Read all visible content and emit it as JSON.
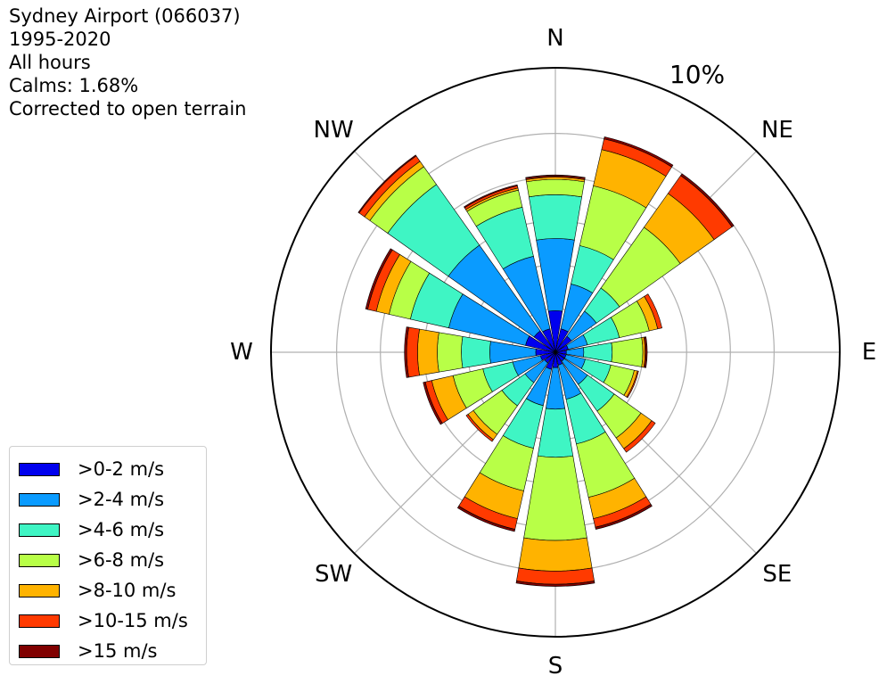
{
  "header": {
    "station": "Sydney Airport (066037)",
    "period": "1995-2020",
    "hours": "All hours",
    "calms": "Calms: 1.68%",
    "note": "Corrected to open terrain"
  },
  "chart_data": {
    "type": "windrose",
    "ring_label": "10%",
    "rmax_pct": 13,
    "rings_pct": [
      2,
      4,
      6,
      8,
      10
    ],
    "directions": [
      "N",
      "NNE",
      "NE",
      "ENE",
      "E",
      "ESE",
      "SE",
      "SSE",
      "S",
      "SSW",
      "SW",
      "WSW",
      "W",
      "WNW",
      "NW",
      "NNW"
    ],
    "cardinal_labels": [
      {
        "text": "N",
        "angle": 0
      },
      {
        "text": "NE",
        "angle": 45
      },
      {
        "text": "E",
        "angle": 90
      },
      {
        "text": "SE",
        "angle": 135
      },
      {
        "text": "S",
        "angle": 180
      },
      {
        "text": "SW",
        "angle": 225
      },
      {
        "text": "W",
        "angle": 270
      },
      {
        "text": "NW",
        "angle": 315
      }
    ],
    "speed_bins": [
      {
        "label": ">0-2 m/s",
        "color": "#0000ee"
      },
      {
        "label": ">2-4 m/s",
        "color": "#0a9bff"
      },
      {
        "label": ">4-6 m/s",
        "color": "#3ff5c4"
      },
      {
        "label": ">6-8 m/s",
        "color": "#b8ff47"
      },
      {
        "label": ">8-10 m/s",
        "color": "#ffb300"
      },
      {
        "label": ">10-15 m/s",
        "color": "#ff3a00"
      },
      {
        "label": ">15 m/s",
        "color": "#800000"
      }
    ],
    "cumulative_pct": [
      [
        1.9,
        5.2,
        7.2,
        7.9,
        8.0,
        8.05,
        8.1
      ],
      [
        1.1,
        3.2,
        5.0,
        7.8,
        9.5,
        10.0,
        10.1
      ],
      [
        0.9,
        2.3,
        3.6,
        7.0,
        8.9,
        9.9,
        10.0
      ],
      [
        0.6,
        1.5,
        3.0,
        4.4,
        4.8,
        5.0,
        5.0
      ],
      [
        0.5,
        1.3,
        2.6,
        4.0,
        4.1,
        4.15,
        4.2
      ],
      [
        0.5,
        1.4,
        2.6,
        3.7,
        3.85,
        3.9,
        3.9
      ],
      [
        0.5,
        1.8,
        3.3,
        4.8,
        5.4,
        5.6,
        5.6
      ],
      [
        0.6,
        2.2,
        4.3,
        6.8,
        7.8,
        8.2,
        8.3
      ],
      [
        0.7,
        2.6,
        4.8,
        8.6,
        10.0,
        10.6,
        10.7
      ],
      [
        0.8,
        2.5,
        4.5,
        6.5,
        7.8,
        8.3,
        8.4
      ],
      [
        0.6,
        1.7,
        3.0,
        4.6,
        4.9,
        5.0,
        5.0
      ],
      [
        0.7,
        2.0,
        3.4,
        4.8,
        5.8,
        6.1,
        6.2
      ],
      [
        0.9,
        3.0,
        4.3,
        5.4,
        6.3,
        6.8,
        6.9
      ],
      [
        1.4,
        5.0,
        6.8,
        7.8,
        8.4,
        8.8,
        8.9
      ],
      [
        1.2,
        6.0,
        9.4,
        10.4,
        10.7,
        11.0,
        11.05
      ],
      [
        1.1,
        4.5,
        6.8,
        7.6,
        7.7,
        7.8,
        7.85
      ]
    ]
  }
}
